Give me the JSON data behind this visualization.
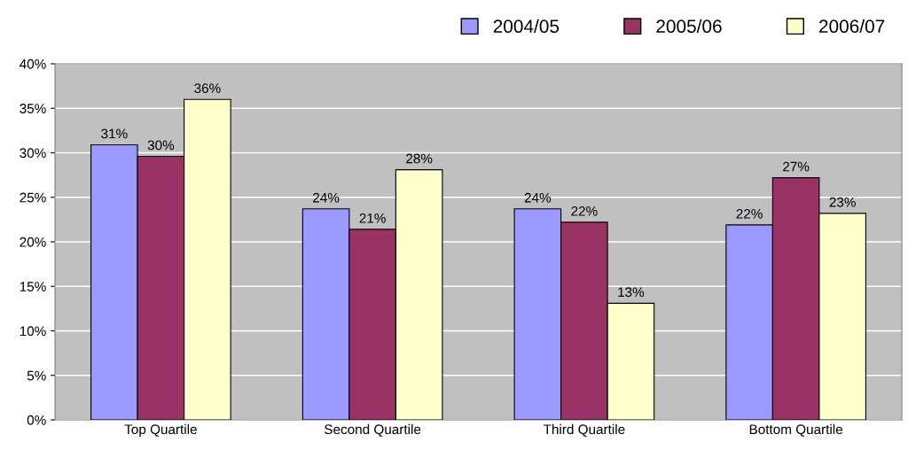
{
  "chart_data": {
    "type": "bar",
    "categories": [
      "Top Quartile",
      "Second Quartile",
      "Third Quartile",
      "Bottom Quartile"
    ],
    "series": [
      {
        "name": "2004/05",
        "color": "#9999ff",
        "values": [
          30.9,
          23.7,
          23.7,
          21.9
        ],
        "value_labels": [
          "31%",
          "24%",
          "24%",
          "22%"
        ]
      },
      {
        "name": "2005/06",
        "color": "#993366",
        "values": [
          29.6,
          21.4,
          22.2,
          27.2
        ],
        "value_labels": [
          "30%",
          "21%",
          "22%",
          "27%"
        ]
      },
      {
        "name": "2006/07",
        "color": "#ffffcc",
        "values": [
          36.0,
          28.1,
          13.1,
          23.2
        ],
        "value_labels": [
          "36%",
          "28%",
          "13%",
          "23%"
        ]
      }
    ],
    "ylim": [
      0,
      40
    ],
    "yticks": [
      {
        "value": 0,
        "label": "0%"
      },
      {
        "value": 5,
        "label": "5%"
      },
      {
        "value": 10,
        "label": "10%"
      },
      {
        "value": 15,
        "label": "15%"
      },
      {
        "value": 20,
        "label": "20%"
      },
      {
        "value": 25,
        "label": "25%"
      },
      {
        "value": 30,
        "label": "30%"
      },
      {
        "value": 35,
        "label": "35%"
      },
      {
        "value": 40,
        "label": "40%"
      }
    ],
    "grid": "y",
    "legend": "top right"
  }
}
